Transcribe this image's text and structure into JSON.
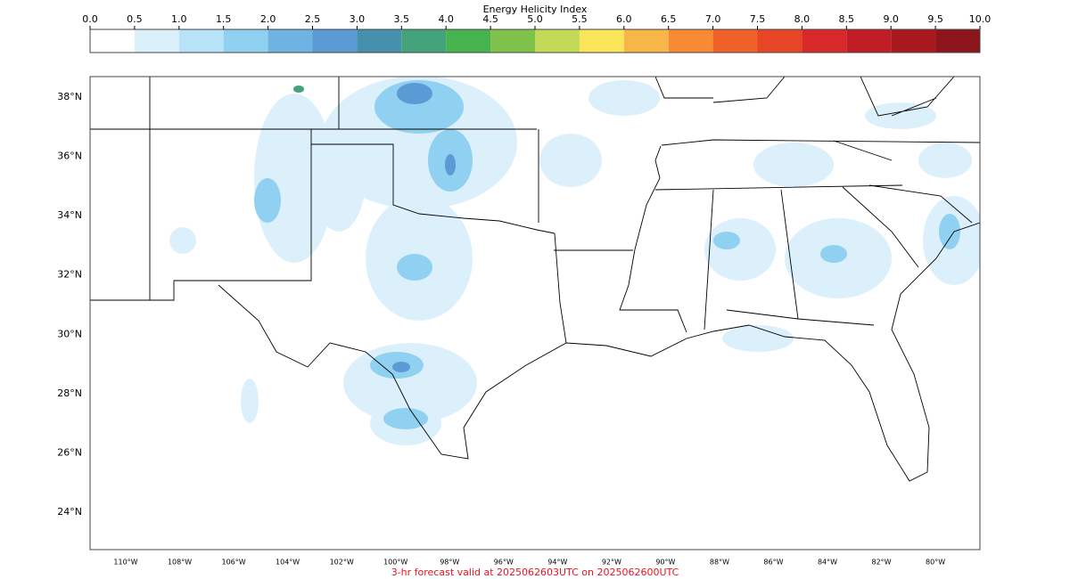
{
  "colorbar": {
    "title": "Energy Helicity Index",
    "ticks": [
      {
        "value": 0,
        "label": "0.0"
      },
      {
        "value": 0.5,
        "label": "0.5"
      },
      {
        "value": 1,
        "label": "1.0"
      },
      {
        "value": 1.5,
        "label": "1.5"
      },
      {
        "value": 2,
        "label": "2.0"
      },
      {
        "value": 2.5,
        "label": "2.5"
      },
      {
        "value": 3,
        "label": "3.0"
      },
      {
        "value": 3.5,
        "label": "3.5"
      },
      {
        "value": 4,
        "label": "4.0"
      },
      {
        "value": 4.5,
        "label": "4.5"
      },
      {
        "value": 5,
        "label": "5.0"
      },
      {
        "value": 5.5,
        "label": "5.5"
      },
      {
        "value": 6,
        "label": "6.0"
      },
      {
        "value": 6.5,
        "label": "6.5"
      },
      {
        "value": 7,
        "label": "7.0"
      },
      {
        "value": 7.5,
        "label": "7.5"
      },
      {
        "value": 8,
        "label": "8.0"
      },
      {
        "value": 8.5,
        "label": "8.5"
      },
      {
        "value": 9,
        "label": "9.0"
      },
      {
        "value": 9.5,
        "label": "9.5"
      },
      {
        "value": 10,
        "label": "10.0"
      }
    ],
    "colors": [
      "#ffffff",
      "#dcf0fc",
      "#b8e2f7",
      "#90d0f1",
      "#6eb3e2",
      "#5a9bd6",
      "#4490ad",
      "#44a37a",
      "#46b34f",
      "#7fc24b",
      "#c1d956",
      "#fae55a",
      "#f8b548",
      "#f68a35",
      "#f06129",
      "#e64526",
      "#d8282a",
      "#c01d26",
      "#a8181f",
      "#8c141b"
    ]
  },
  "map": {
    "lat_labels": [
      {
        "value": 38,
        "label": "38°N"
      },
      {
        "value": 36,
        "label": "36°N"
      },
      {
        "value": 34,
        "label": "34°N"
      },
      {
        "value": 32,
        "label": "32°N"
      },
      {
        "value": 30,
        "label": "30°N"
      },
      {
        "value": 28,
        "label": "28°N"
      },
      {
        "value": 26,
        "label": "26°N"
      },
      {
        "value": 24,
        "label": "24°N"
      }
    ],
    "lon_labels": [
      {
        "value": -110,
        "label": "110°W"
      },
      {
        "value": -108,
        "label": "108°W"
      },
      {
        "value": -106,
        "label": "106°W"
      },
      {
        "value": -104,
        "label": "104°W"
      },
      {
        "value": -102,
        "label": "102°W"
      },
      {
        "value": -100,
        "label": "100°W"
      },
      {
        "value": -98,
        "label": "98°W"
      },
      {
        "value": -96,
        "label": "96°W"
      },
      {
        "value": -94,
        "label": "94°W"
      },
      {
        "value": -92,
        "label": "92°W"
      },
      {
        "value": -90,
        "label": "90°W"
      },
      {
        "value": -88,
        "label": "88°W"
      },
      {
        "value": -86,
        "label": "86°W"
      },
      {
        "value": -84,
        "label": "84°W"
      },
      {
        "value": -82,
        "label": "82°W"
      },
      {
        "value": -80,
        "label": "80°W"
      }
    ]
  },
  "footer": "3-hr forecast valid at 2025062603UTC on 2025062600UTC"
}
